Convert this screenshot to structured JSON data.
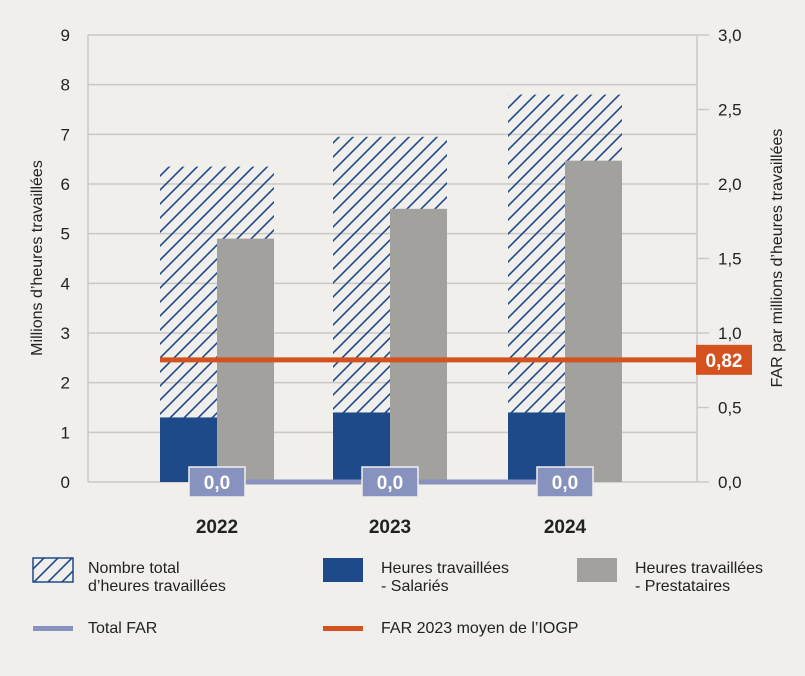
{
  "chart_data": {
    "type": "bar",
    "categories": [
      "2022",
      "2023",
      "2024"
    ],
    "series": [
      {
        "name": "Nombre total d’heures travaillées",
        "axis": "left",
        "style": "hatched",
        "values": [
          6.35,
          6.95,
          7.8
        ]
      },
      {
        "name": "Heures travaillées - Salariés",
        "axis": "left",
        "values": [
          1.3,
          1.4,
          1.4
        ]
      },
      {
        "name": "Heures travaillées - Prestataires",
        "axis": "left",
        "values": [
          4.9,
          5.5,
          6.47
        ]
      },
      {
        "name": "Total FAR",
        "axis": "right",
        "type": "line",
        "values": [
          0.0,
          0.0,
          0.0
        ],
        "labels": [
          "0,0",
          "0,0",
          "0,0"
        ]
      },
      {
        "name": "FAR 2023 moyen de l’IOGP",
        "axis": "right",
        "type": "hline",
        "value": 0.82,
        "label": "0,82"
      }
    ],
    "ylabel": "Millions d’heures travaillées",
    "y2label": "FAR par millions d’heures travaillées",
    "ylim": [
      0,
      9
    ],
    "y2lim": [
      0,
      3.0
    ],
    "yticks": [
      "0",
      "1",
      "2",
      "3",
      "4",
      "5",
      "6",
      "7",
      "8",
      "9"
    ],
    "y2ticks": [
      "0,0",
      "0,5",
      "1,0",
      "1,5",
      "2,0",
      "2,5",
      "3,0"
    ],
    "grid": true,
    "legend_position": "bottom",
    "colors": {
      "hatch": "#1f4a8a",
      "salaries": "#1f4a8a",
      "prestataires": "#a2a19d",
      "far": "#8793be",
      "iogp": "#d4521e"
    }
  },
  "legend": {
    "total": [
      "Nombre total",
      "d’heures travaillées"
    ],
    "salaries": [
      "Heures travaillées",
      "- Salariés"
    ],
    "prestataires": [
      "Heures travaillées",
      "- Prestataires"
    ],
    "far": "Total FAR",
    "iogp": "FAR 2023 moyen de l’IOGP"
  }
}
